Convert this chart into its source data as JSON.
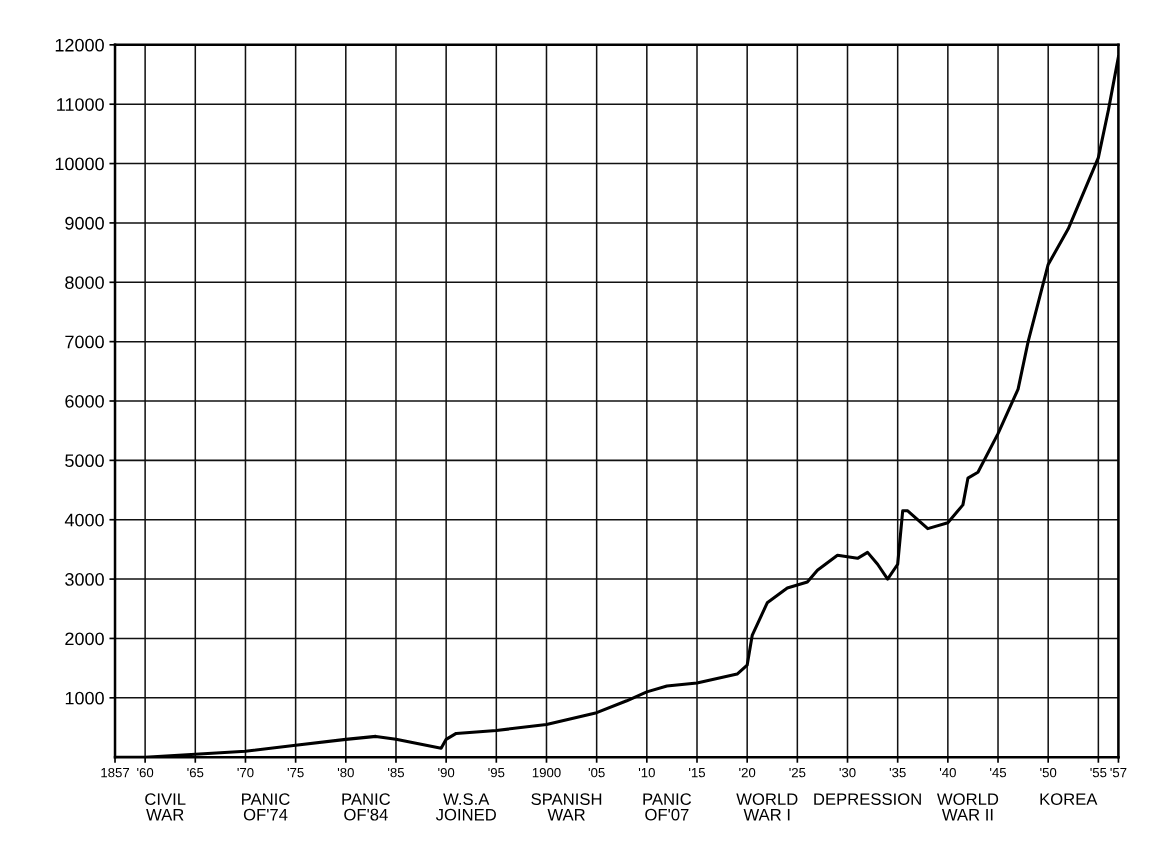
{
  "chart_data": {
    "type": "line",
    "x": [
      1857,
      1860,
      1865,
      1870,
      1875,
      1880,
      1883,
      1885,
      1888,
      1889.5,
      1890,
      1891,
      1895,
      1900,
      1905,
      1908,
      1910,
      1912,
      1915,
      1919,
      1920,
      1920.5,
      1922,
      1924,
      1926,
      1927,
      1929,
      1931,
      1932,
      1933,
      1934,
      1935,
      1935.5,
      1936,
      1938,
      1940,
      1941.5,
      1942,
      1943,
      1945,
      1947,
      1948,
      1950,
      1952,
      1953,
      1954,
      1955,
      1956,
      1957
    ],
    "series": [
      {
        "color": "#000000",
        "values": [
          0,
          0,
          50,
          100,
          200,
          300,
          350,
          300,
          200,
          150,
          300,
          400,
          450,
          550,
          750,
          950,
          1100,
          1200,
          1250,
          1400,
          1550,
          2050,
          2600,
          2850,
          2950,
          3150,
          3400,
          3350,
          3450,
          3250,
          3000,
          3250,
          4150,
          4150,
          3850,
          3950,
          4250,
          4700,
          4800,
          5450,
          6200,
          7000,
          8300,
          8900,
          9300,
          9700,
          10100,
          10900,
          11800
        ]
      }
    ],
    "xlim": [
      1857,
      1957
    ],
    "xticks": [
      {
        "value": 1857,
        "label": "1857"
      },
      {
        "value": 1860,
        "label": "'60"
      },
      {
        "value": 1865,
        "label": "'65"
      },
      {
        "value": 1870,
        "label": "'70"
      },
      {
        "value": 1875,
        "label": "'75"
      },
      {
        "value": 1880,
        "label": "'80"
      },
      {
        "value": 1885,
        "label": "'85"
      },
      {
        "value": 1890,
        "label": "'90"
      },
      {
        "value": 1895,
        "label": "'95"
      },
      1900,
      {
        "value": 1905,
        "label": "'05"
      },
      {
        "value": 1910,
        "label": "'10"
      },
      {
        "value": 1915,
        "label": "'15"
      },
      {
        "value": 1920,
        "label": "'20"
      },
      {
        "value": 1925,
        "label": "'25"
      },
      {
        "value": 1930,
        "label": "'30"
      },
      {
        "value": 1935,
        "label": "'35"
      },
      {
        "value": 1940,
        "label": "'40"
      },
      {
        "value": 1945,
        "label": "'45"
      },
      {
        "value": 1950,
        "label": "'50"
      },
      {
        "value": 1955,
        "label": "'55"
      },
      {
        "value": 1957,
        "label": "'57"
      }
    ],
    "ylim": [
      0,
      12000
    ],
    "yticks": [
      1000,
      2000,
      3000,
      4000,
      5000,
      6000,
      7000,
      8000,
      9000,
      10000,
      11000,
      12000
    ],
    "grid": true,
    "annotations": [
      "CIVIL\nWAR",
      "PANIC\nOF'74",
      "PANIC\nOF'84",
      "W.S.A\nJOINED",
      "SPANISH\nWAR",
      "PANIC\nOF'07",
      "WORLD\nWAR I",
      "DEPRESSION",
      "WORLD\nWAR II",
      "KOREA"
    ]
  }
}
